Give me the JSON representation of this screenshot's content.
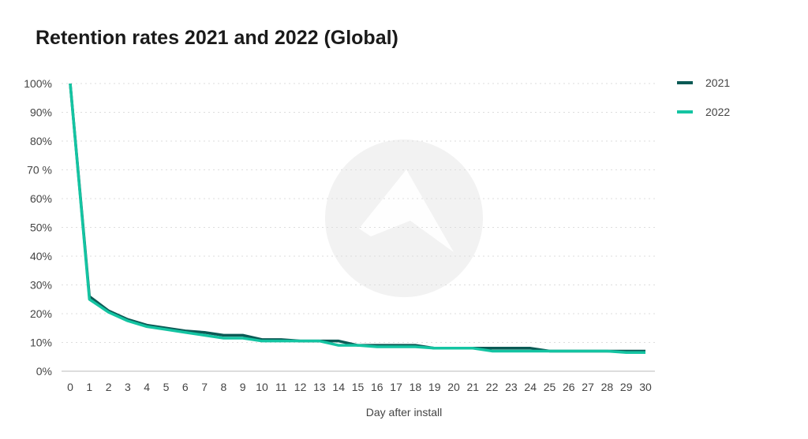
{
  "chart_data": {
    "type": "line",
    "title": "Retention rates 2021 and 2022 (Global)",
    "xlabel": "Day after install",
    "ylabel": "",
    "ylim": [
      0,
      100
    ],
    "yticks": [
      "0%",
      "10%",
      "20%",
      "30%",
      "40%",
      "50%",
      "60%",
      "70 %",
      "80%",
      "90%",
      "100%"
    ],
    "x": [
      0,
      1,
      2,
      3,
      4,
      5,
      6,
      7,
      8,
      9,
      10,
      11,
      12,
      13,
      14,
      15,
      16,
      17,
      18,
      19,
      20,
      21,
      22,
      23,
      24,
      25,
      26,
      27,
      28,
      29,
      30
    ],
    "series": [
      {
        "name": "2021",
        "color": "#0b5a55",
        "values": [
          100,
          26,
          21,
          18,
          16,
          15,
          14,
          13.5,
          12.5,
          12.5,
          11,
          11,
          10.5,
          10.5,
          10.5,
          9,
          9,
          9,
          9,
          8,
          8,
          8,
          8,
          8,
          8,
          7,
          7,
          7,
          7,
          7,
          7
        ]
      },
      {
        "name": "2022",
        "color": "#14c4a2",
        "values": [
          100,
          25,
          20.5,
          17.5,
          15.5,
          14.5,
          13.5,
          12.5,
          11.5,
          11.5,
          10.5,
          10.5,
          10.5,
          10.5,
          9,
          9,
          8.5,
          8.5,
          8.5,
          8,
          8,
          8,
          7,
          7,
          7,
          7,
          7,
          7,
          7,
          6.5,
          6.5
        ]
      }
    ],
    "grid": true,
    "legend": "top-right"
  }
}
